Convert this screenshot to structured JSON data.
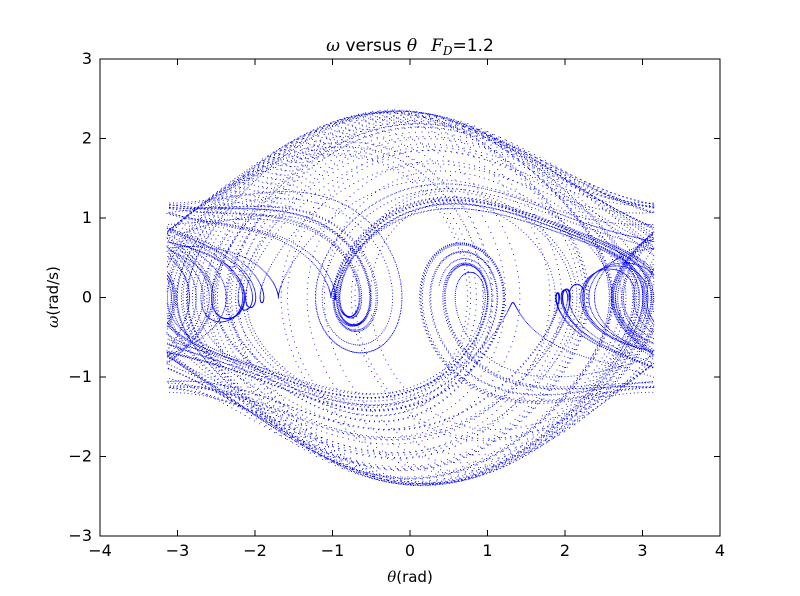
{
  "chart_data": {
    "type": "scatter",
    "title": {
      "omega": "ω",
      "versus": " versus ",
      "theta": "θ",
      "F": "F",
      "sub": "D",
      "value": "=1.2"
    },
    "xlabel": {
      "symbol": "θ",
      "unit": "(rad)"
    },
    "ylabel": {
      "symbol": "ω",
      "unit": "(rad/s)"
    },
    "xlim": [
      -4,
      4
    ],
    "ylim": [
      -3,
      3
    ],
    "xticks": [
      -4,
      -3,
      -2,
      -1,
      0,
      1,
      2,
      3,
      4
    ],
    "yticks": [
      -3,
      -2,
      -1,
      0,
      1,
      2,
      3
    ],
    "xtick_labels": [
      "−4",
      "−3",
      "−2",
      "−1",
      "0",
      "1",
      "2",
      "3",
      "4"
    ],
    "ytick_labels": [
      "−3",
      "−2",
      "−1",
      "0",
      "1",
      "2",
      "3"
    ],
    "grid": false,
    "marker_color": "#0000ff",
    "series": [
      {
        "name": "",
        "description_values": {
          "theta_range": [
            -3.14159,
            3.14159
          ],
          "omega_range": [
            -2.35,
            2.37
          ],
          "left_vortex_center": [
            -0.85,
            0.0
          ],
          "right_vortex_center": [
            0.95,
            0.0
          ],
          "wrap_vortices": [
            [
              -3.0,
              0.0
            ],
            [
              3.0,
              0.0
            ]
          ]
        }
      }
    ]
  }
}
